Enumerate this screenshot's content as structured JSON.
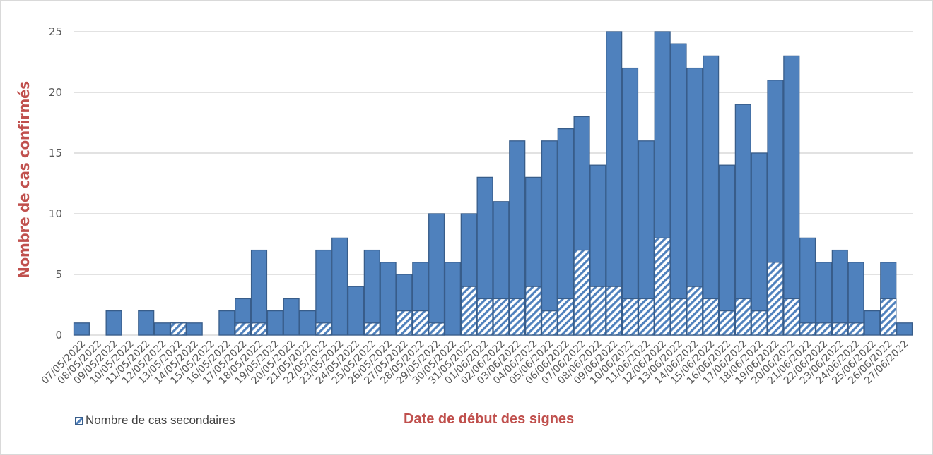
{
  "chart_data": {
    "type": "bar",
    "stacked_overlay": true,
    "title": "",
    "xlabel": "Date de début des signes",
    "ylabel": "Nombre de cas confirmés",
    "ylim": [
      0,
      25
    ],
    "yticks": [
      0,
      5,
      10,
      15,
      20,
      25
    ],
    "grid": true,
    "legend_position": "bottom-left",
    "categories": [
      "07/05/2022",
      "08/05/2022",
      "09/05/2022",
      "10/05/2022",
      "11/05/2022",
      "12/05/2022",
      "13/05/2022",
      "14/05/2022",
      "15/05/2022",
      "16/05/2022",
      "17/05/2022",
      "18/05/2022",
      "19/05/2022",
      "20/05/2022",
      "21/05/2022",
      "22/05/2022",
      "23/05/2022",
      "24/05/2022",
      "25/05/2022",
      "26/05/2022",
      "27/05/2022",
      "28/05/2022",
      "29/05/2022",
      "30/05/2022",
      "31/05/2022",
      "01/06/2022",
      "02/06/2022",
      "03/06/2022",
      "04/06/2022",
      "05/06/2022",
      "06/06/2022",
      "07/06/2022",
      "08/06/2022",
      "09/06/2022",
      "10/06/2022",
      "11/06/2022",
      "12/06/2022",
      "13/06/2022",
      "14/06/2022",
      "15/06/2022",
      "16/06/2022",
      "17/06/2022",
      "18/06/2022",
      "19/06/2022",
      "20/06/2022",
      "21/06/2022",
      "22/06/2022",
      "23/06/2022",
      "24/06/2022",
      "25/06/2022",
      "26/06/2022",
      "27/06/2022"
    ],
    "series": [
      {
        "name": "Nombre de cas confirmés",
        "color": "#4F81BD",
        "pattern": "solid",
        "values": [
          1,
          0,
          2,
          0,
          2,
          1,
          1,
          1,
          0,
          2,
          3,
          7,
          2,
          3,
          2,
          7,
          8,
          4,
          7,
          6,
          5,
          6,
          10,
          6,
          10,
          13,
          11,
          16,
          13,
          16,
          17,
          18,
          14,
          25,
          22,
          16,
          25,
          24,
          22,
          23,
          14,
          19,
          15,
          21,
          23,
          8,
          6,
          7,
          6,
          2,
          6,
          1
        ]
      },
      {
        "name": "Nombre de cas secondaires",
        "color": "#4F81BD",
        "pattern": "hatched",
        "values": [
          0,
          0,
          0,
          0,
          0,
          0,
          1,
          0,
          0,
          0,
          1,
          1,
          0,
          0,
          0,
          1,
          0,
          0,
          1,
          0,
          2,
          2,
          1,
          0,
          4,
          3,
          3,
          3,
          4,
          2,
          3,
          7,
          4,
          4,
          3,
          3,
          8,
          3,
          4,
          3,
          2,
          3,
          2,
          6,
          3,
          1,
          1,
          1,
          1,
          0,
          3,
          0
        ]
      }
    ]
  },
  "legend": {
    "label": "Nombre de cas secondaires"
  },
  "colors": {
    "bar_fill": "#4F81BD",
    "bar_border": "#385D8A",
    "axis_title": "#C0504D",
    "grid": "#D9D9D9",
    "tick_text": "#595959"
  }
}
